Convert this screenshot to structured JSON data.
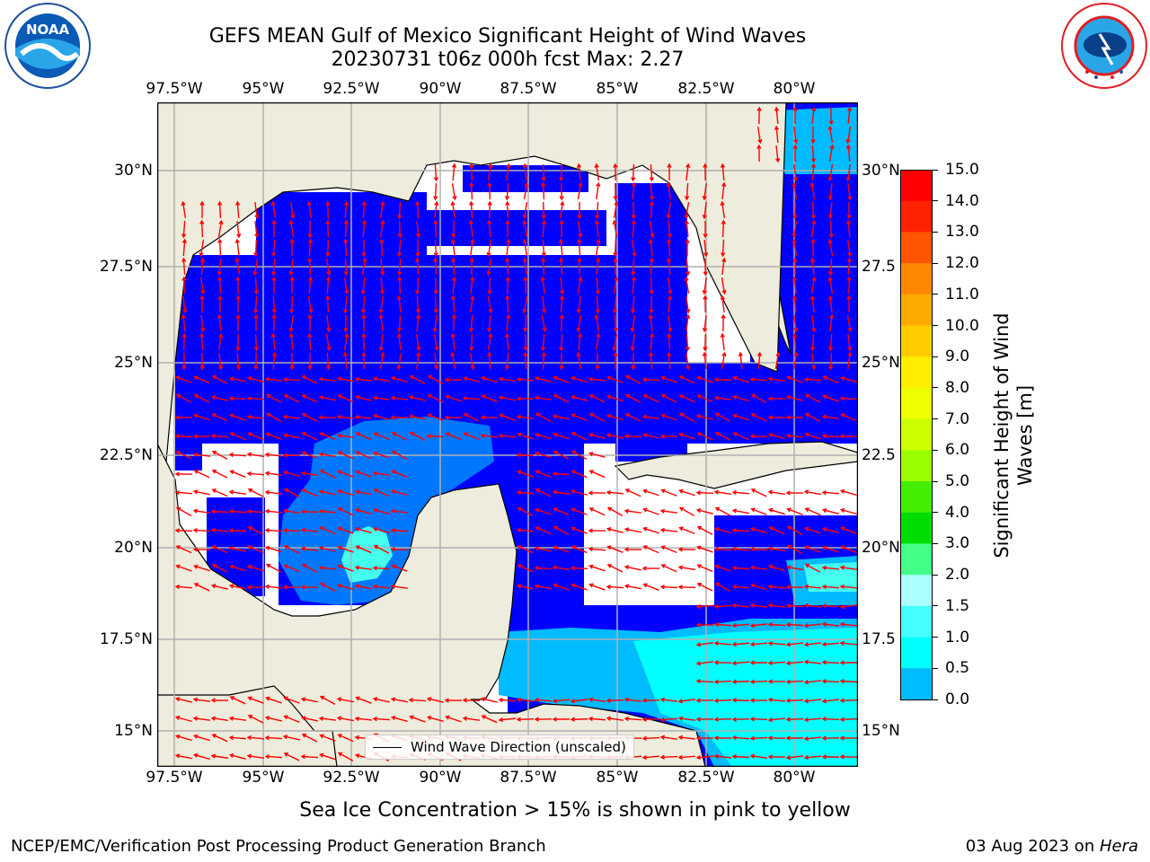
{
  "title": {
    "line1": "GEFS MEAN Gulf of Mexico Significant Height of Wind Waves",
    "line2": "20230731 t06z 000h fcst   Max: 2.27"
  },
  "logos": {
    "left_name": "noaa-logo",
    "left_text": "NOAA",
    "right_name": "nws-logo",
    "right_text": "NATIONAL WEATHER SERVICE"
  },
  "map": {
    "lon_labels": [
      "97.5°W",
      "95°W",
      "92.5°W",
      "90°W",
      "87.5°W",
      "85°W",
      "82.5°W",
      "80°W"
    ],
    "lat_labels": [
      "30°N",
      "27.5°N",
      "25°N",
      "22.5°N",
      "20°N",
      "17.5°N",
      "15°N"
    ],
    "lat_labels_right": [
      "30°N",
      "27.5",
      "25°N",
      "22.5",
      "20°N",
      "17.5",
      "15°N"
    ],
    "legend_label": "Wind Wave Direction (unscaled)",
    "colors": {
      "land": "#eeecdc",
      "coast": "#000000",
      "grid": "#b0b0b0",
      "arrow": "#ff0000",
      "wave_0_0p5": "#0000ff",
      "wave_0p5_1": "#0077ff",
      "wave_1_1p5": "#00bbff",
      "wave_1p5_2": "#00ffff",
      "wave_2_2p5": "#44ffee"
    }
  },
  "colorbar": {
    "label_line1": "Significant Height of Wind",
    "label_line2": "Waves [m]",
    "ticks": [
      "15.0",
      "14.0",
      "13.0",
      "12.0",
      "11.0",
      "10.0",
      "9.0",
      "8.0",
      "7.0",
      "6.0",
      "5.0",
      "4.0",
      "3.0",
      "2.0",
      "1.5",
      "1.0",
      "0.5",
      "0.0"
    ],
    "colors": [
      "#ff0000",
      "#ff2200",
      "#ff5500",
      "#ff8800",
      "#ffaa00",
      "#ffcc00",
      "#ffee00",
      "#eeff00",
      "#ccff00",
      "#99ff00",
      "#44ee00",
      "#00dd00",
      "#44ff88",
      "#aaffff",
      "#44ffff",
      "#00ffff",
      "#00bbff",
      "#0077ff",
      "#0000ff"
    ]
  },
  "subtitle": "Sea Ice Concentration > 15% is shown in pink to yellow",
  "footer": {
    "left": "NCEP/EMC/Verification Post Processing Product Generation Branch",
    "right_date": "03 Aug 2023 on ",
    "right_host": "Hera"
  }
}
